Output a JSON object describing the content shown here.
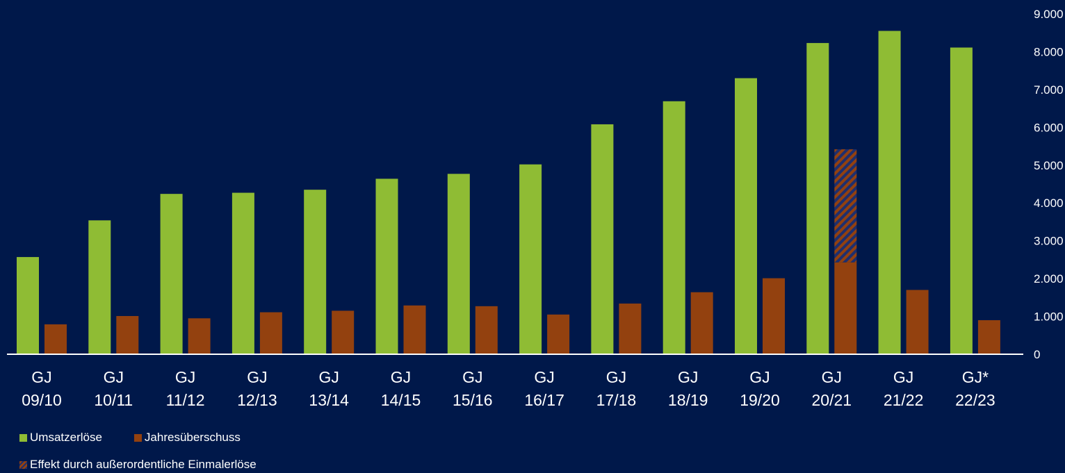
{
  "chart_data": {
    "type": "bar",
    "categories": [
      [
        "GJ",
        "09/10"
      ],
      [
        "GJ",
        "10/11"
      ],
      [
        "GJ",
        "11/12"
      ],
      [
        "GJ",
        "12/13"
      ],
      [
        "GJ",
        "13/14"
      ],
      [
        "GJ",
        "14/15"
      ],
      [
        "GJ",
        "15/16"
      ],
      [
        "GJ",
        "16/17"
      ],
      [
        "GJ",
        "17/18"
      ],
      [
        "GJ",
        "18/19"
      ],
      [
        "GJ",
        "19/20"
      ],
      [
        "GJ",
        "20/21"
      ],
      [
        "GJ",
        "21/22"
      ],
      [
        "GJ*",
        "22/23"
      ]
    ],
    "series": [
      {
        "name": "Umsatzerlöse",
        "color": "#8fbc34",
        "values": [
          2570,
          3540,
          4240,
          4270,
          4350,
          4640,
          4770,
          5020,
          6080,
          6690,
          7300,
          8230,
          8550,
          8110
        ]
      },
      {
        "name": "Jahresüberschuss",
        "color": "#93410f",
        "values": [
          790,
          1010,
          950,
          1110,
          1150,
          1290,
          1270,
          1050,
          1340,
          1640,
          2010,
          2430,
          1700,
          900
        ]
      }
    ],
    "special_effect": {
      "name": "Effekt durch außerordentliche Einmalerlöse",
      "category_index": 11,
      "from": 2430,
      "to": 5420,
      "pattern": "hatched"
    },
    "y_axis": {
      "position": "right",
      "ylim": [
        0,
        9000
      ],
      "ticks": [
        "0",
        "1.000",
        "2.000",
        "3.000",
        "4.000",
        "5.000",
        "6.000",
        "7.000",
        "8.000",
        "9.000"
      ]
    },
    "legend": {
      "placement": "bottom-left",
      "items": [
        {
          "label": "Umsatzerlöse",
          "color": "#8fbc34"
        },
        {
          "label": "Jahresüberschuss",
          "color": "#93410f"
        },
        {
          "label": "Effekt durch außerordentliche Einmalerlöse",
          "color": "#93410f"
        }
      ]
    },
    "grid": false,
    "background": "#00184a"
  }
}
